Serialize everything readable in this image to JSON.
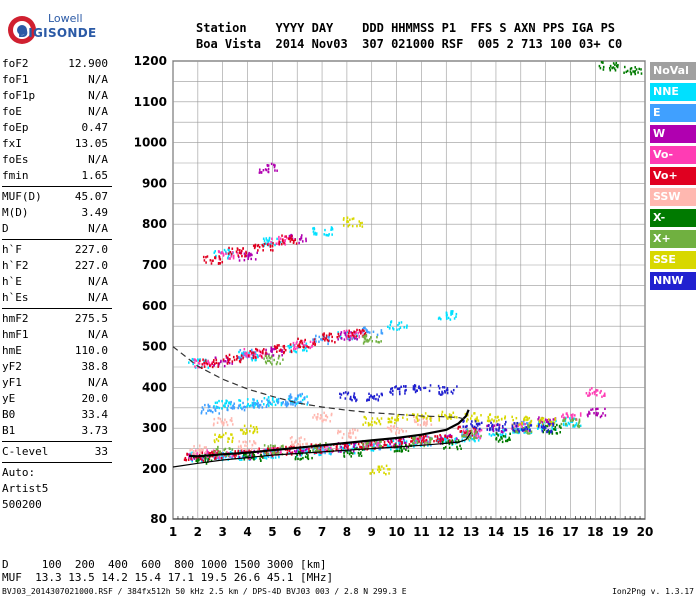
{
  "logo": {
    "line1": "Lowell",
    "line2": "DIGISONDE"
  },
  "header": {
    "row1": "Station    YYYY DAY    DDD HHMMSS P1  FFS S AXN PPS IGA PS",
    "row2": "Boa Vista  2014 Nov03  307 021000 RSF  005 2 713 100 03+ C0"
  },
  "params": {
    "group1": [
      {
        "k": "foF2",
        "v": "12.900"
      },
      {
        "k": "foF1",
        "v": "N/A"
      },
      {
        "k": "foF1p",
        "v": "N/A"
      },
      {
        "k": "foE",
        "v": "N/A"
      },
      {
        "k": "foEp",
        "v": "0.47"
      },
      {
        "k": "fxI",
        "v": "13.05"
      },
      {
        "k": "foEs",
        "v": "N/A"
      },
      {
        "k": "fmin",
        "v": "1.65"
      }
    ],
    "group2": [
      {
        "k": "MUF(D)",
        "v": "45.07"
      },
      {
        "k": "M(D)",
        "v": "3.49"
      },
      {
        "k": "D",
        "v": "N/A"
      }
    ],
    "group3": [
      {
        "k": "h`F",
        "v": "227.0"
      },
      {
        "k": "h`F2",
        "v": "227.0"
      },
      {
        "k": "h`E",
        "v": "N/A"
      },
      {
        "k": "h`Es",
        "v": "N/A"
      }
    ],
    "group4": [
      {
        "k": "hmF2",
        "v": "275.5"
      },
      {
        "k": "hmF1",
        "v": "N/A"
      },
      {
        "k": "hmE",
        "v": "110.0"
      },
      {
        "k": "yF2",
        "v": "38.8"
      },
      {
        "k": "yF1",
        "v": "N/A"
      },
      {
        "k": "yE",
        "v": "20.0"
      },
      {
        "k": "B0",
        "v": "33.4"
      },
      {
        "k": "B1",
        "v": "3.73"
      }
    ],
    "group5": [
      {
        "k": "C-level",
        "v": "33"
      }
    ],
    "auto_label": "Auto:",
    "artist": "Artist5",
    "code": "500200"
  },
  "legend": [
    {
      "label": "NoVal",
      "color": "#a0a0a0"
    },
    {
      "label": "NNE",
      "color": "#00e0ff"
    },
    {
      "label": "E",
      "color": "#40a0ff"
    },
    {
      "label": "W",
      "color": "#b000b0"
    },
    {
      "label": "Vo-",
      "color": "#ff3cb4"
    },
    {
      "label": "Vo+",
      "color": "#e00020"
    },
    {
      "label": "SSW",
      "color": "#ffb8b0"
    },
    {
      "label": "X-",
      "color": "#007a00"
    },
    {
      "label": "X+",
      "color": "#70b040"
    },
    {
      "label": "SSE",
      "color": "#d8d800"
    },
    {
      "label": "NNW",
      "color": "#2020d0"
    }
  ],
  "bottom": {
    "row1": "D     100  200  400  600  800 1000 1500 3000 [km]",
    "row2": "MUF  13.3 13.5 14.2 15.4 17.1 19.5 26.6 45.1 [MHz]"
  },
  "footer": "BVJ03_2014307021000.RSF / 384fx512h 50 kHz 2.5 km / DPS-4D BVJ03 003 / 2.8 N 299.3 E",
  "version": "Ion2Png v. 1.3.17",
  "chart_data": {
    "type": "scatter",
    "title": "",
    "xlabel": "",
    "ylabel": "",
    "xlim": [
      1,
      20
    ],
    "ylim": [
      80,
      1200
    ],
    "x_ticks": [
      1,
      2,
      3,
      4,
      5,
      6,
      7,
      8,
      9,
      10,
      11,
      12,
      13,
      14,
      15,
      16,
      17,
      18,
      19,
      20
    ],
    "y_ticks": [
      80,
      200,
      300,
      400,
      500,
      600,
      700,
      800,
      900,
      1000,
      1100,
      1200
    ],
    "grid": true,
    "legend_position": "right",
    "series": [
      {
        "name": "NNE",
        "color": "#00e0ff",
        "points": [
          [
            2,
            232
          ],
          [
            3,
            234
          ],
          [
            4,
            236
          ],
          [
            5,
            240
          ],
          [
            6,
            244
          ],
          [
            7,
            248
          ],
          [
            8,
            252
          ],
          [
            9,
            258
          ],
          [
            10,
            262
          ],
          [
            11,
            266
          ],
          [
            12,
            272
          ],
          [
            13,
            282
          ],
          [
            14,
            292
          ],
          [
            15,
            300
          ],
          [
            16,
            310
          ],
          [
            17,
            318
          ],
          [
            3,
            360
          ],
          [
            4,
            364
          ],
          [
            5,
            368
          ],
          [
            6,
            372
          ],
          [
            2,
            462
          ],
          [
            4,
            480
          ],
          [
            6,
            500
          ],
          [
            8,
            530
          ],
          [
            10,
            555
          ],
          [
            12,
            580
          ],
          [
            3,
            730
          ],
          [
            5,
            760
          ],
          [
            7,
            785
          ]
        ]
      },
      {
        "name": "E",
        "color": "#40a0ff",
        "points": [
          [
            2.5,
            350
          ],
          [
            3.5,
            358
          ],
          [
            4.5,
            362
          ],
          [
            5.5,
            366
          ],
          [
            6,
            376
          ],
          [
            3,
            240
          ],
          [
            5,
            244
          ],
          [
            7,
            252
          ],
          [
            9,
            262
          ],
          [
            11,
            272
          ],
          [
            13,
            290
          ],
          [
            15,
            310
          ],
          [
            4,
            484
          ],
          [
            7,
            520
          ],
          [
            9,
            540
          ]
        ]
      },
      {
        "name": "W",
        "color": "#b000b0",
        "points": [
          [
            2,
            236
          ],
          [
            4,
            238
          ],
          [
            6,
            246
          ],
          [
            8,
            256
          ],
          [
            10,
            266
          ],
          [
            12,
            276
          ],
          [
            14,
            300
          ],
          [
            16,
            320
          ],
          [
            18,
            340
          ],
          [
            3,
            466
          ],
          [
            5,
            490
          ],
          [
            8,
            528
          ],
          [
            4,
            724
          ],
          [
            6,
            766
          ],
          [
            4.8,
            940
          ]
        ]
      },
      {
        "name": "Vo-",
        "color": "#ff3cb4",
        "points": [
          [
            2,
            238
          ],
          [
            3,
            240
          ],
          [
            5,
            246
          ],
          [
            7,
            254
          ],
          [
            9,
            262
          ],
          [
            11,
            272
          ],
          [
            13,
            288
          ],
          [
            15,
            306
          ],
          [
            17,
            330
          ],
          [
            18,
            390
          ],
          [
            2.2,
            462
          ],
          [
            4.2,
            486
          ],
          [
            6.2,
            508
          ],
          [
            8.2,
            532
          ],
          [
            3.2,
            728
          ],
          [
            5.2,
            762
          ]
        ]
      },
      {
        "name": "Vo+",
        "color": "#e00020",
        "points": [
          [
            1.8,
            232
          ],
          [
            2.8,
            236
          ],
          [
            3.8,
            240
          ],
          [
            4.8,
            244
          ],
          [
            5.8,
            248
          ],
          [
            6.8,
            252
          ],
          [
            7.8,
            258
          ],
          [
            8.8,
            262
          ],
          [
            9.8,
            266
          ],
          [
            10.8,
            274
          ],
          [
            11.8,
            280
          ],
          [
            12.8,
            296
          ],
          [
            2.4,
            460
          ],
          [
            3.4,
            472
          ],
          [
            4.4,
            486
          ],
          [
            5.4,
            498
          ],
          [
            6.4,
            512
          ],
          [
            7.4,
            524
          ],
          [
            8.4,
            534
          ],
          [
            2.6,
            716
          ],
          [
            3.6,
            734
          ],
          [
            4.6,
            748
          ],
          [
            5.6,
            764
          ]
        ]
      },
      {
        "name": "SSW",
        "color": "#ffb8b0",
        "points": [
          [
            2,
            250
          ],
          [
            4,
            260
          ],
          [
            6,
            270
          ],
          [
            8,
            290
          ],
          [
            10,
            300
          ],
          [
            3,
            320
          ],
          [
            7,
            330
          ],
          [
            11,
            320
          ]
        ]
      },
      {
        "name": "X-",
        "color": "#007a00",
        "points": [
          [
            2.2,
            226
          ],
          [
            4.2,
            230
          ],
          [
            6.2,
            236
          ],
          [
            8.2,
            244
          ],
          [
            10.2,
            252
          ],
          [
            12.2,
            262
          ],
          [
            14.2,
            280
          ],
          [
            16.2,
            300
          ],
          [
            18.5,
            1190
          ],
          [
            19.5,
            1180
          ]
        ]
      },
      {
        "name": "X+",
        "color": "#70b040",
        "points": [
          [
            3,
            246
          ],
          [
            5,
            250
          ],
          [
            7,
            256
          ],
          [
            9,
            262
          ],
          [
            11,
            270
          ],
          [
            13,
            286
          ],
          [
            15,
            300
          ],
          [
            17,
            316
          ],
          [
            5,
            470
          ],
          [
            9,
            520
          ]
        ]
      },
      {
        "name": "SSE",
        "color": "#d8d800",
        "points": [
          [
            9,
            320
          ],
          [
            10,
            326
          ],
          [
            11,
            330
          ],
          [
            12,
            332
          ],
          [
            13,
            330
          ],
          [
            14,
            328
          ],
          [
            15,
            320
          ],
          [
            16,
            318
          ],
          [
            9.3,
            200
          ],
          [
            8.2,
            808
          ],
          [
            4,
            300
          ],
          [
            3,
            280
          ]
        ]
      },
      {
        "name": "NNW",
        "color": "#2020d0",
        "points": [
          [
            9,
            380
          ],
          [
            10,
            396
          ],
          [
            11,
            400
          ],
          [
            12,
            396
          ],
          [
            8,
            380
          ],
          [
            13,
            310
          ],
          [
            14,
            308
          ],
          [
            15,
            306
          ],
          [
            16,
            304
          ]
        ]
      }
    ],
    "curves": [
      {
        "name": "profile_solid",
        "style": "solid",
        "points": [
          [
            1,
            205
          ],
          [
            2,
            214
          ],
          [
            3,
            222
          ],
          [
            4,
            228
          ],
          [
            5,
            234
          ],
          [
            6,
            238
          ],
          [
            7,
            242
          ],
          [
            8,
            246
          ],
          [
            9,
            250
          ],
          [
            10,
            254
          ],
          [
            11,
            258
          ],
          [
            12,
            263
          ],
          [
            12.5,
            266
          ],
          [
            12.8,
            272
          ],
          [
            13,
            290
          ]
        ]
      },
      {
        "name": "trace_bold",
        "style": "bold",
        "points": [
          [
            1.65,
            232
          ],
          [
            2,
            231
          ],
          [
            3,
            236
          ],
          [
            4,
            240
          ],
          [
            5,
            246
          ],
          [
            6,
            252
          ],
          [
            7,
            258
          ],
          [
            8,
            264
          ],
          [
            9,
            270
          ],
          [
            10,
            276
          ],
          [
            11,
            284
          ],
          [
            12,
            296
          ],
          [
            12.5,
            312
          ],
          [
            12.8,
            330
          ],
          [
            12.9,
            345
          ]
        ]
      },
      {
        "name": "profile_dashed",
        "style": "dashed",
        "points": [
          [
            1,
            500
          ],
          [
            2,
            452
          ],
          [
            3,
            420
          ],
          [
            4,
            396
          ],
          [
            5,
            378
          ],
          [
            6,
            362
          ],
          [
            7,
            352
          ],
          [
            8,
            344
          ],
          [
            9,
            338
          ],
          [
            10,
            334
          ],
          [
            11,
            330
          ],
          [
            12,
            328
          ],
          [
            12.5,
            326
          ],
          [
            12.9,
            320
          ]
        ]
      }
    ]
  }
}
